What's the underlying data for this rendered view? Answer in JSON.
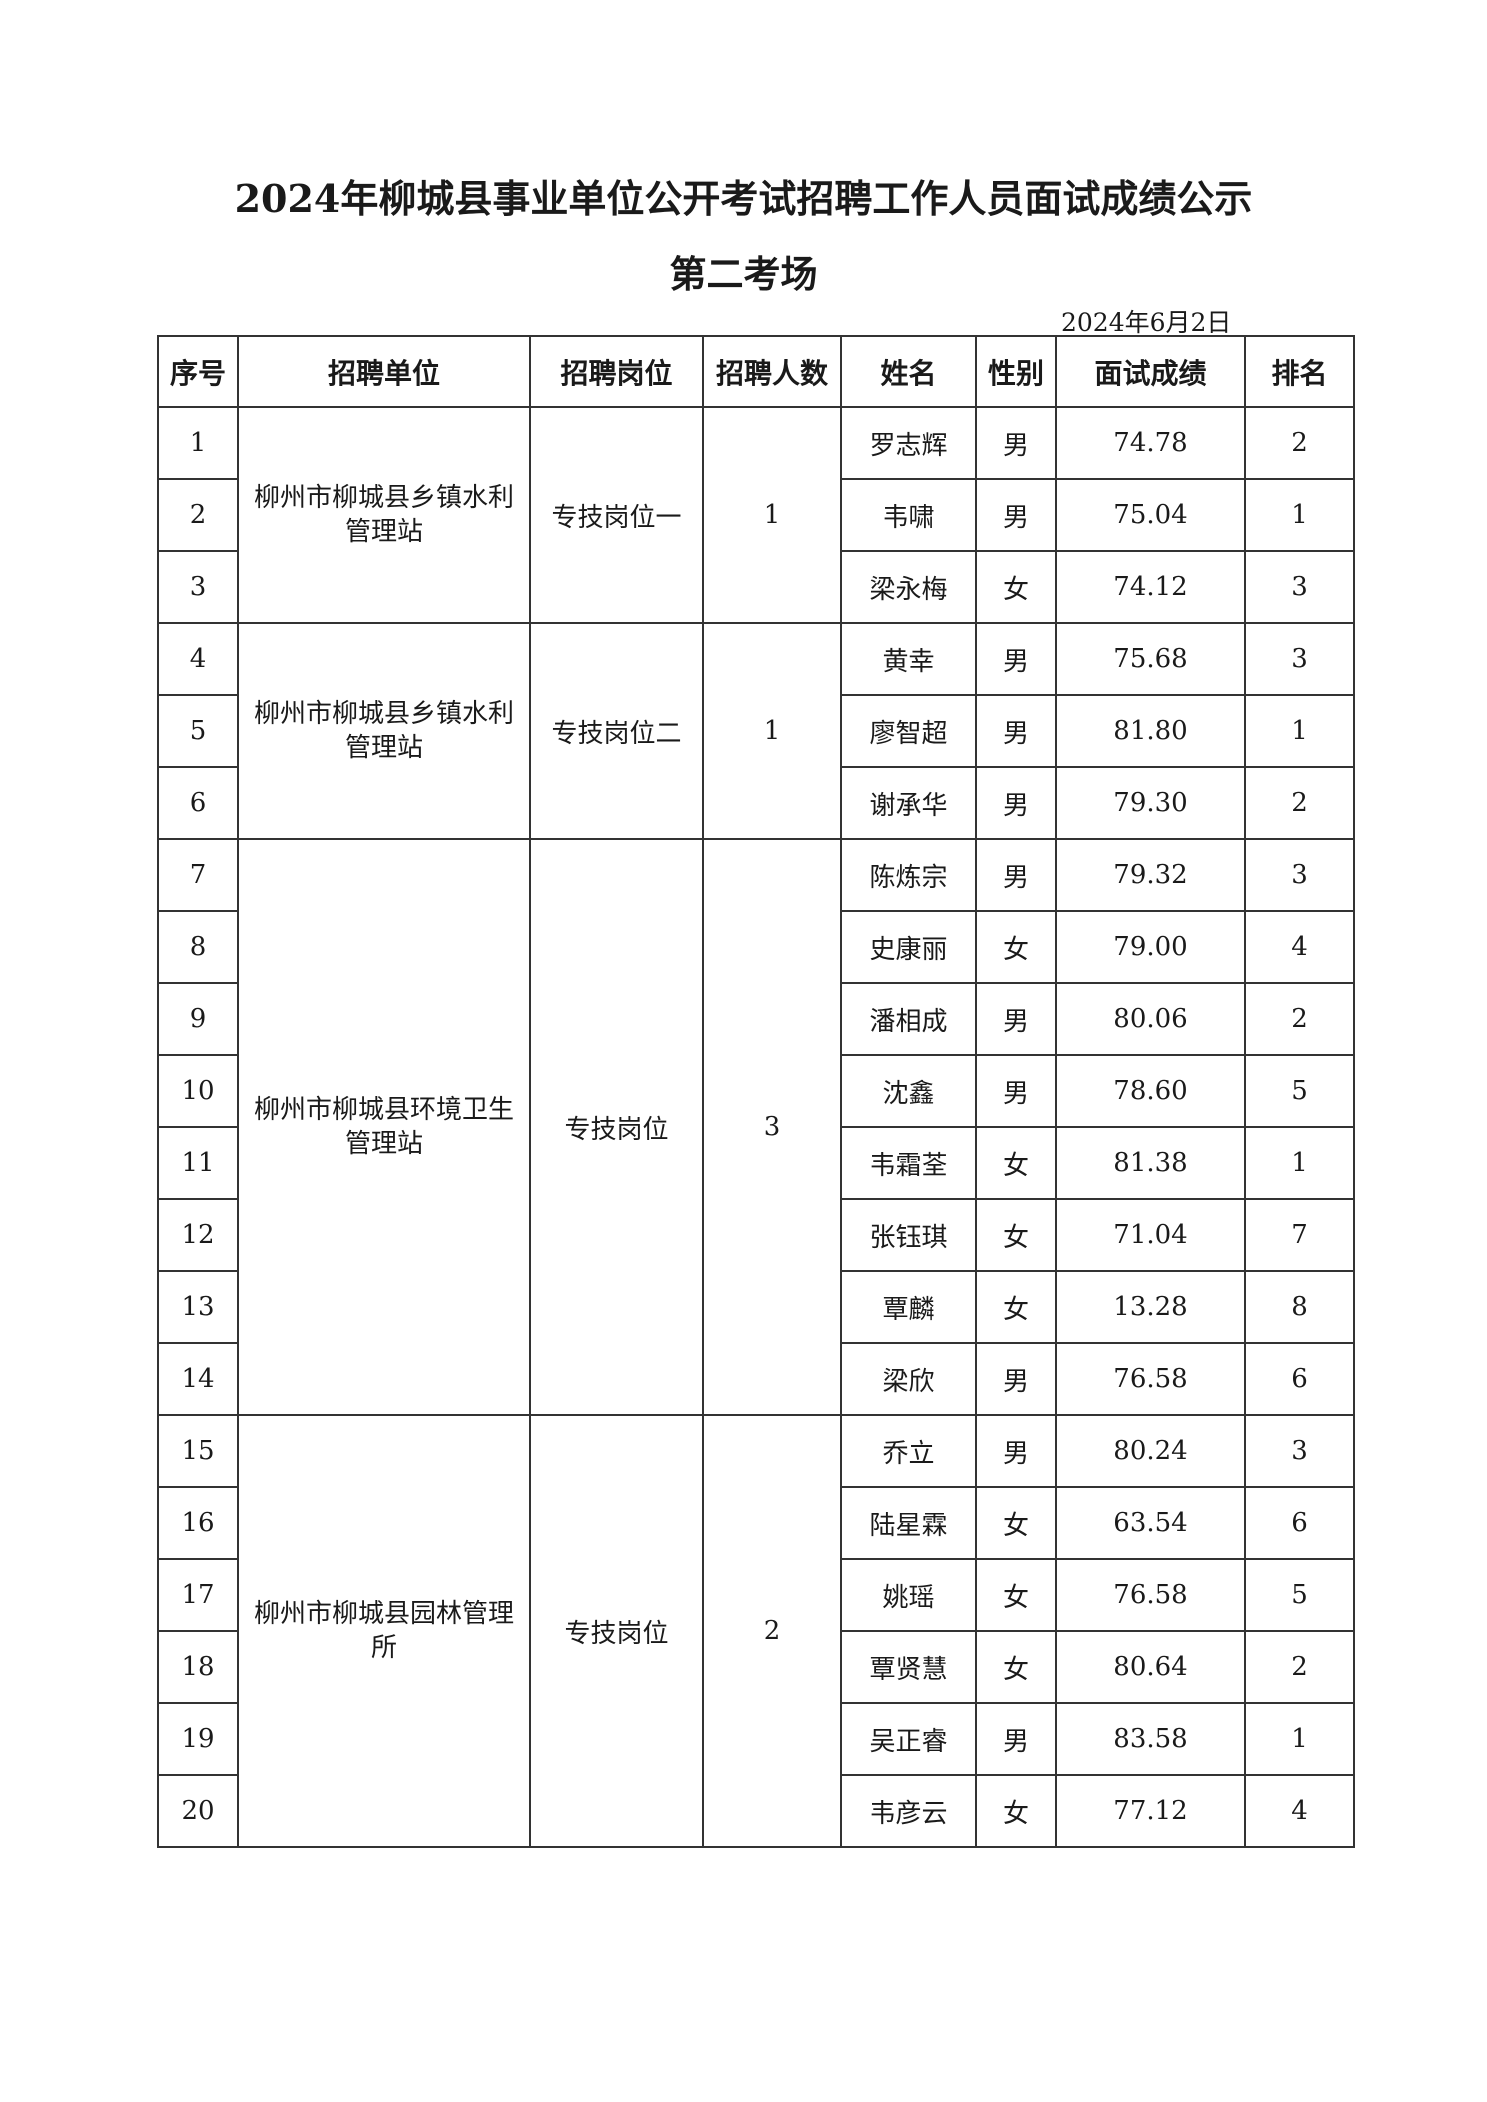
{
  "title": "2024年柳城县事业单位公开考试招聘工作人员面试成绩公示",
  "subtitle": "第二考场",
  "date": "2024年6月2日",
  "headers": [
    "序号",
    "招聘单位",
    "招聘岗位",
    "招聘人数",
    "姓名",
    "性别",
    "面试成绩",
    "排名"
  ],
  "groups": [
    {
      "unit": "柳州市柳城县乡镇水利管理站",
      "position": "专技岗位一",
      "count": "1",
      "rows": [
        [
          "1",
          "罗志辉",
          "男",
          "74.78",
          "2"
        ],
        [
          "2",
          "韦啸",
          "男",
          "75.04",
          "1"
        ],
        [
          "3",
          "梁永梅",
          "女",
          "74.12",
          "3"
        ]
      ]
    },
    {
      "unit": "柳州市柳城县乡镇水利管理站",
      "position": "专技岗位二",
      "count": "1",
      "rows": [
        [
          "4",
          "黄幸",
          "男",
          "75.68",
          "3"
        ],
        [
          "5",
          "廖智超",
          "男",
          "81.80",
          "1"
        ],
        [
          "6",
          "谢承华",
          "男",
          "79.30",
          "2"
        ]
      ]
    },
    {
      "unit": "柳州市柳城县环境卫生管理站",
      "position": "专技岗位",
      "count": "3",
      "rows": [
        [
          "7",
          "陈炼宗",
          "男",
          "79.32",
          "3"
        ],
        [
          "8",
          "史康丽",
          "女",
          "79.00",
          "4"
        ],
        [
          "9",
          "潘相成",
          "男",
          "80.06",
          "2"
        ],
        [
          "10",
          "沈鑫",
          "男",
          "78.60",
          "5"
        ],
        [
          "11",
          "韦霜荃",
          "女",
          "81.38",
          "1"
        ],
        [
          "12",
          "张钰琪",
          "女",
          "71.04",
          "7"
        ],
        [
          "13",
          "覃麟",
          "女",
          "13.28",
          "8"
        ],
        [
          "14",
          "梁欣",
          "男",
          "76.58",
          "6"
        ]
      ]
    },
    {
      "unit": "柳州市柳城县园林管理所",
      "position": "专技岗位",
      "count": "2",
      "rows": [
        [
          "15",
          "乔立",
          "男",
          "80.24",
          "3"
        ],
        [
          "16",
          "陆星霖",
          "女",
          "63.54",
          "6"
        ],
        [
          "17",
          "姚瑶",
          "女",
          "76.58",
          "5"
        ],
        [
          "18",
          "覃贤慧",
          "女",
          "80.64",
          "2"
        ],
        [
          "19",
          "吴正睿",
          "男",
          "83.58",
          "1"
        ],
        [
          "20",
          "韦彦云",
          "女",
          "77.12",
          "4"
        ]
      ]
    }
  ]
}
